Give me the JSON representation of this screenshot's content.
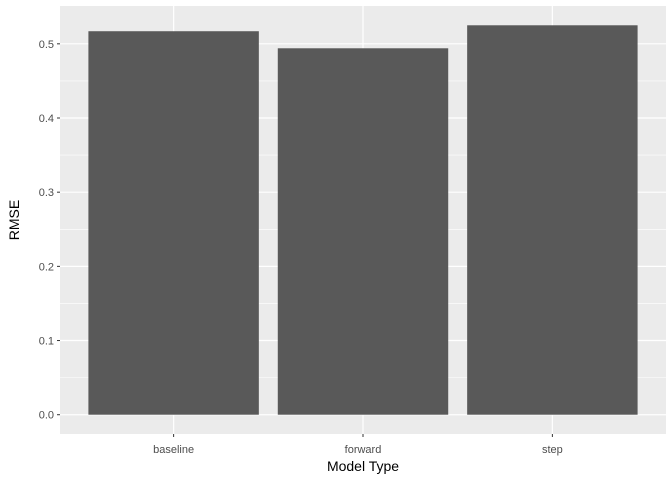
{
  "chart_data": {
    "type": "bar",
    "title": "",
    "xlabel": "Model Type",
    "ylabel": "RMSE",
    "categories": [
      "baseline",
      "forward",
      "step"
    ],
    "values": [
      0.517,
      0.494,
      0.525
    ],
    "ylim": [
      0,
      0.54
    ],
    "yticks": [
      0.0,
      0.1,
      0.2,
      0.3,
      0.4,
      0.5
    ],
    "ytick_labels": [
      "0.0",
      "0.1",
      "0.2",
      "0.3",
      "0.4",
      "0.5"
    ],
    "grid": true,
    "legend": "none",
    "colors": {
      "bar": "#595959",
      "panel_background": "#ebebeb",
      "grid": "#ffffff"
    }
  }
}
